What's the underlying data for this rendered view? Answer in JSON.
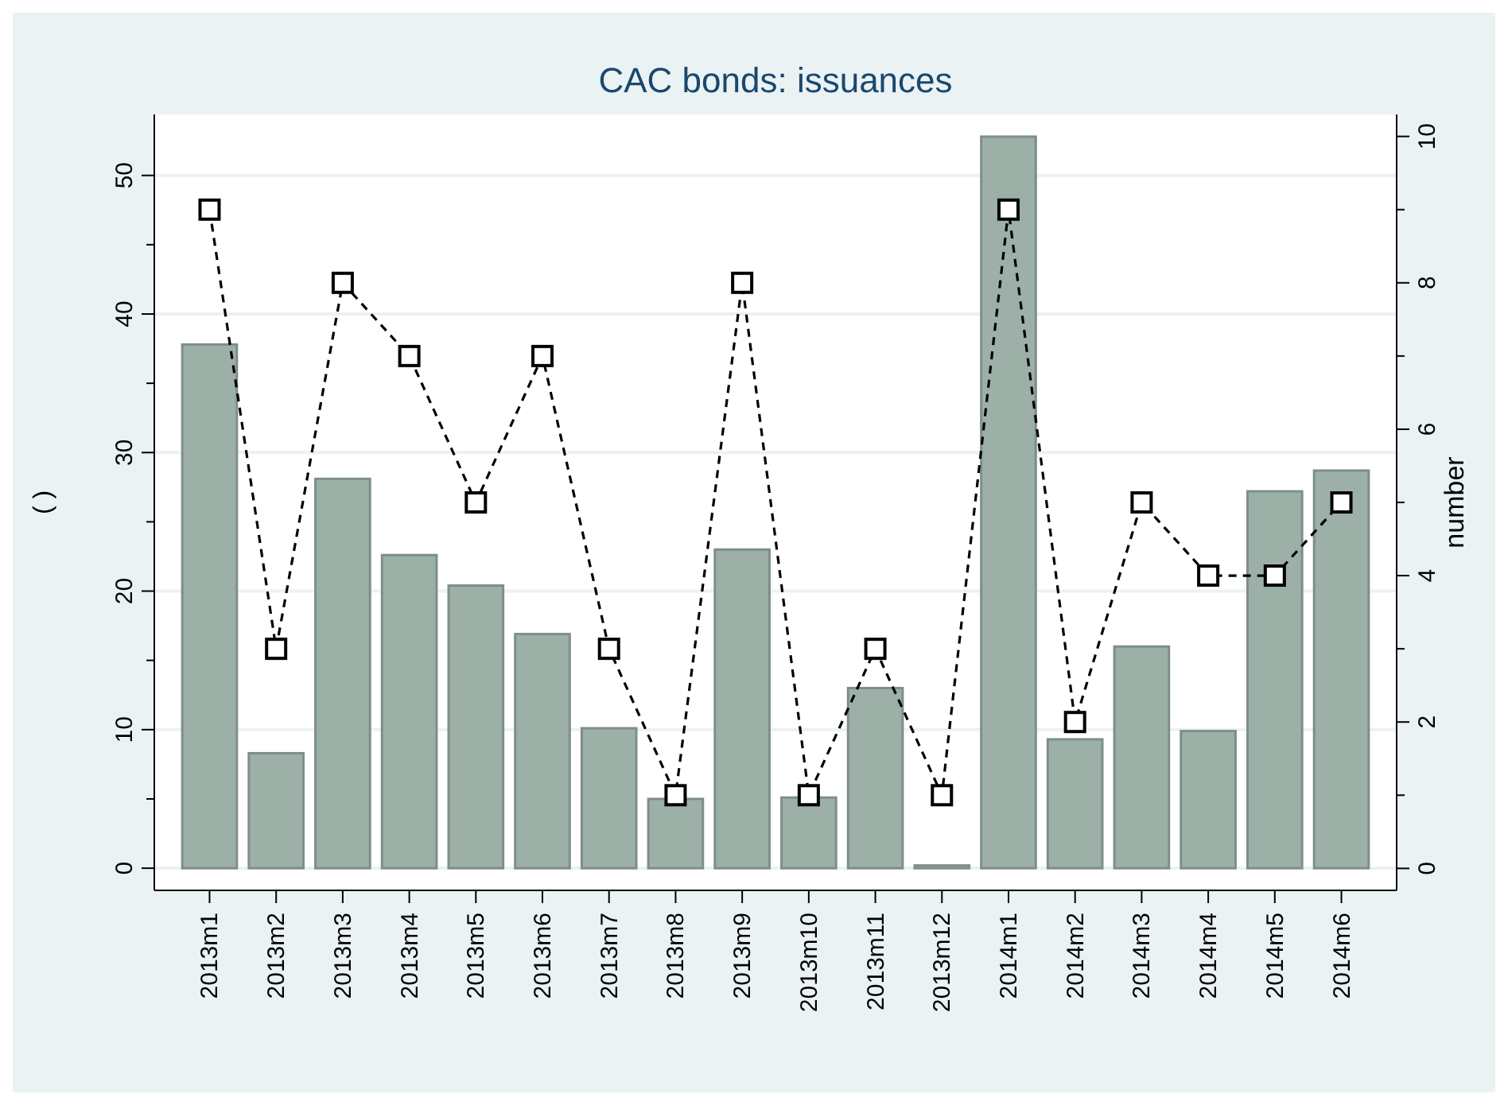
{
  "chart_data": {
    "type": "bar",
    "title": "CAC bonds: issuances",
    "ylabel": "(      )",
    "y2label": "number",
    "categories": [
      "2013m1",
      "2013m2",
      "2013m3",
      "2013m4",
      "2013m5",
      "2013m6",
      "2013m7",
      "2013m8",
      "2013m9",
      "2013m10",
      "2013m11",
      "2013m12",
      "2014m1",
      "2014m2",
      "2014m3",
      "2014m4",
      "2014m5",
      "2014m6"
    ],
    "series": [
      {
        "color": "#9cb0a8",
        "values": [
          37.8,
          8.3,
          28.1,
          22.6,
          20.4,
          16.9,
          10.1,
          5.0,
          23.0,
          5.1,
          13.0,
          0.2,
          52.8,
          9.3,
          16.0,
          9.9,
          27.2,
          28.7
        ]
      },
      {
        "type": "line",
        "axis": "y2",
        "color": "#000000",
        "marker": "square",
        "line_style": "dashed",
        "values": [
          9,
          3,
          8,
          7,
          5,
          7,
          3,
          1,
          8,
          1,
          3,
          1,
          9,
          2,
          5,
          4,
          4,
          5
        ]
      }
    ],
    "ylim": [
      -1.6,
      54.4
    ],
    "yticks": [
      0,
      {
        "value": 5,
        "label": null
      },
      10,
      {
        "value": 15,
        "label": null
      },
      20,
      {
        "value": 25,
        "label": null
      },
      30,
      {
        "value": 35,
        "label": null
      },
      40,
      {
        "value": 45,
        "label": null
      },
      50
    ],
    "y2lim": [
      -0.3,
      10.3
    ],
    "y2ticks": [
      0,
      {
        "value": 1,
        "label": null
      },
      2,
      {
        "value": 3,
        "label": null
      },
      4,
      {
        "value": 5,
        "label": null
      },
      6,
      {
        "value": 7,
        "label": null
      },
      8,
      {
        "value": 9,
        "label": null
      },
      10
    ],
    "grid": "y"
  }
}
